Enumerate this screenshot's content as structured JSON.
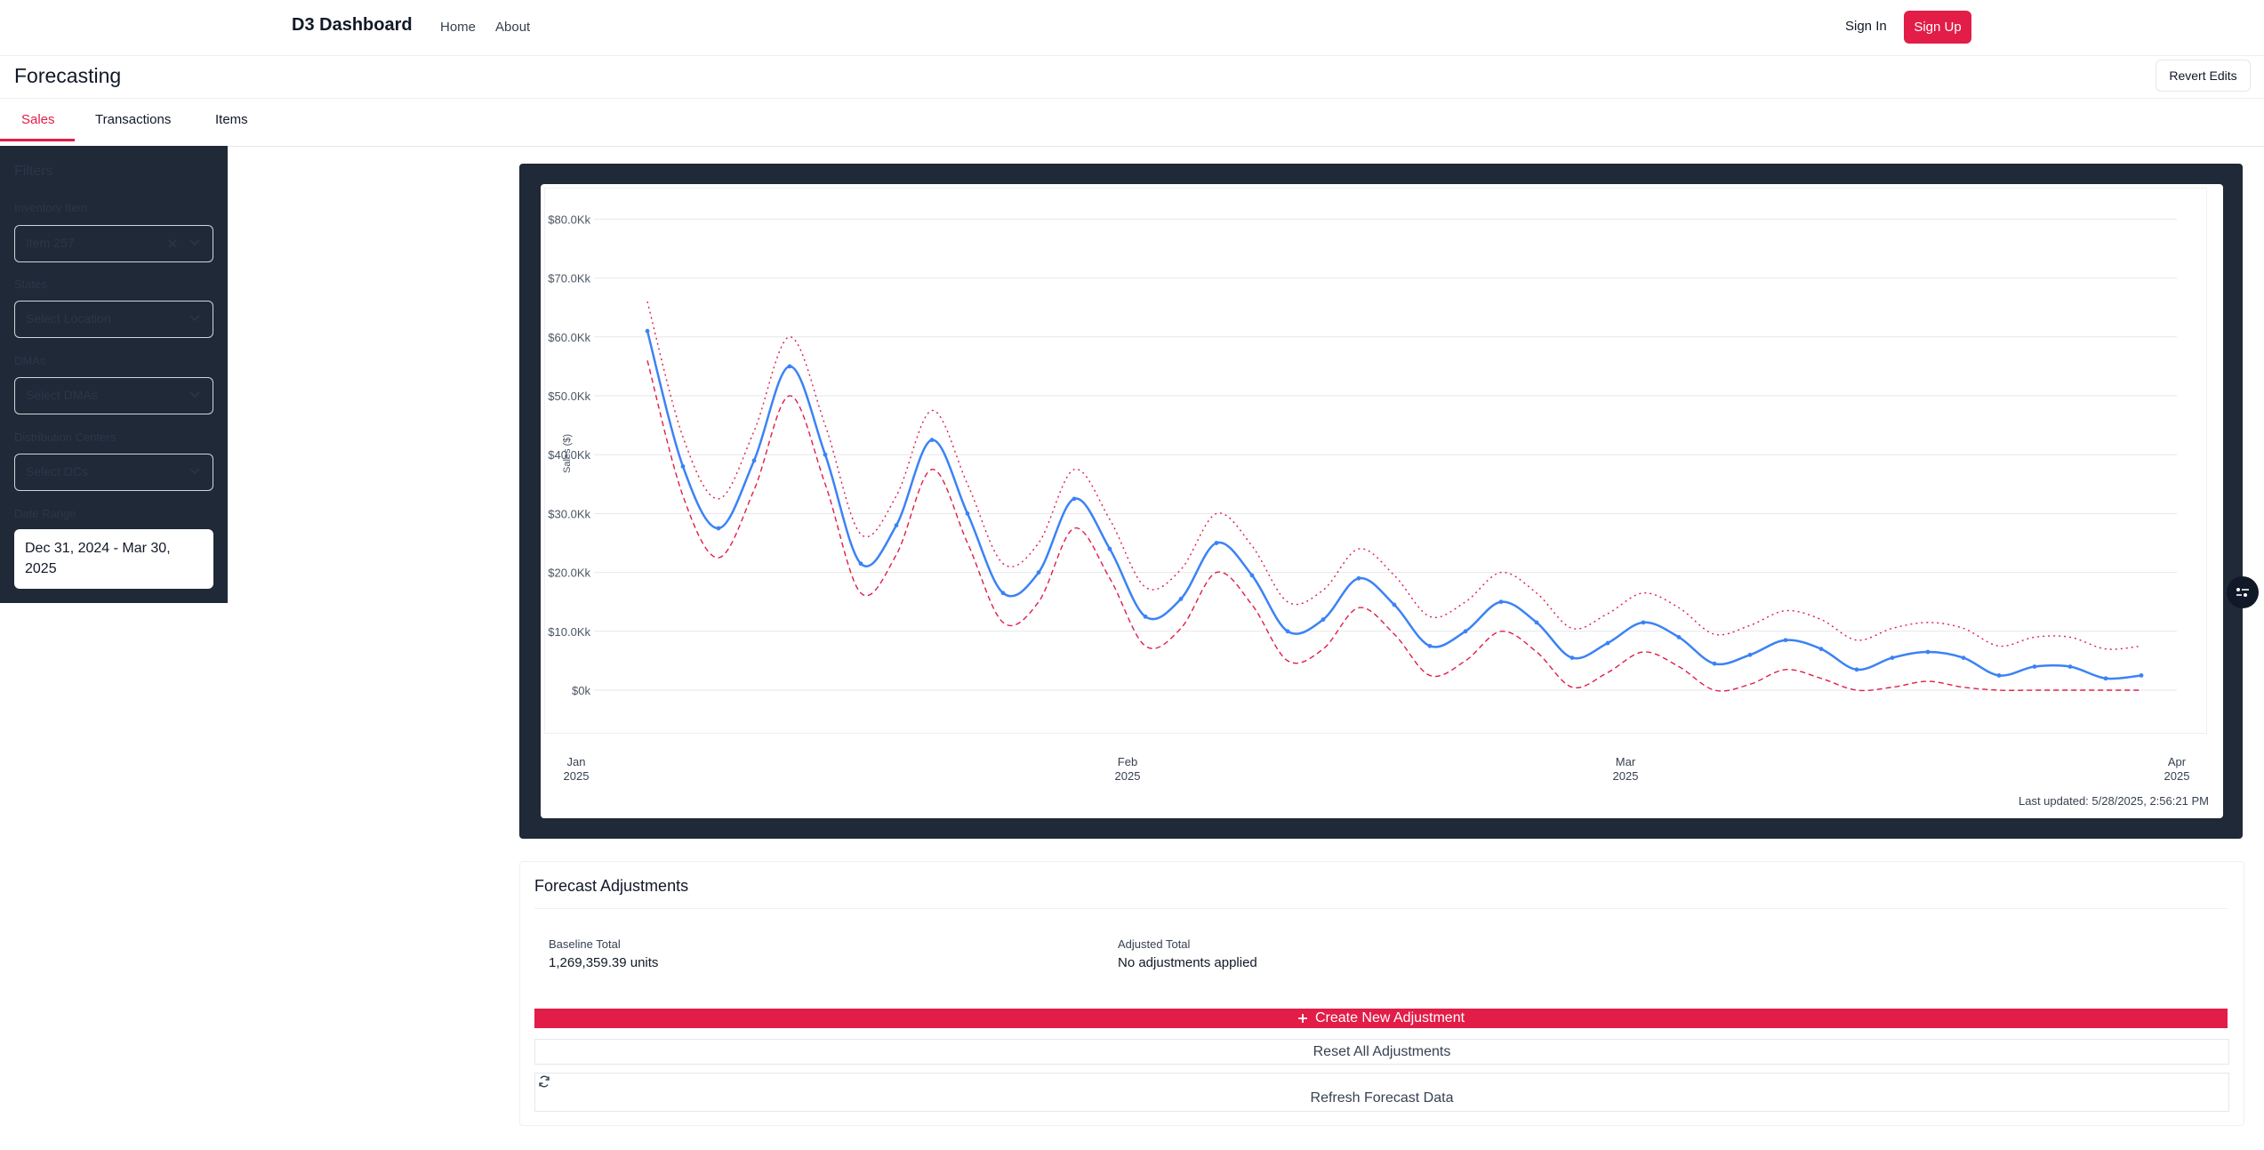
{
  "nav": {
    "brand": "D3 Dashboard",
    "links": [
      "Home",
      "About"
    ],
    "sign_in": "Sign In",
    "sign_up": "Sign Up"
  },
  "page": {
    "title": "Forecasting",
    "revert_label": "Revert Edits"
  },
  "tabs": [
    {
      "label": "Sales",
      "active": true
    },
    {
      "label": "Transactions",
      "active": false
    },
    {
      "label": "Items",
      "active": false
    }
  ],
  "filters": {
    "title": "Filters",
    "inventory_item": {
      "label": "Inventory Item",
      "value": "Item 257"
    },
    "states": {
      "label": "States",
      "placeholder": "Select Location"
    },
    "dmas": {
      "label": "DMAs",
      "placeholder": "Select DMAs"
    },
    "distribution_centers": {
      "label": "Distribution Centers",
      "placeholder": "Select DCs"
    },
    "date_range": {
      "label": "Date Range",
      "value": "Dec 31, 2024 - Mar 30, 2025"
    }
  },
  "chart_data": {
    "type": "line",
    "ylabel": "Sales ($)",
    "y_ticks": [
      "$0k",
      "$10.0Kk",
      "$20.0Kk",
      "$30.0Kk",
      "$40.0Kk",
      "$50.0Kk",
      "$60.0Kk",
      "$70.0Kk",
      "$80.0Kk"
    ],
    "y_tick_values": [
      0,
      10000,
      20000,
      30000,
      40000,
      50000,
      60000,
      70000,
      80000
    ],
    "ylim": [
      0,
      80000
    ],
    "x_ticks": [
      {
        "date": "2025-01-01",
        "month": "Jan",
        "year": "2025"
      },
      {
        "date": "2025-02-01",
        "month": "Feb",
        "year": "2025"
      },
      {
        "date": "2025-03-01",
        "month": "Mar",
        "year": "2025"
      },
      {
        "date": "2025-04-01",
        "month": "Apr",
        "year": "2025"
      }
    ],
    "xlim": [
      "2025-01-01",
      "2025-04-01"
    ],
    "grid": true,
    "series": [
      {
        "role": "forecast",
        "color": "#3b82f6",
        "style": "solid",
        "points": [
          [
            "2025-01-05",
            61000
          ],
          [
            "2025-01-07",
            38000
          ],
          [
            "2025-01-09",
            27500
          ],
          [
            "2025-01-11",
            39000
          ],
          [
            "2025-01-13",
            55000
          ],
          [
            "2025-01-15",
            40000
          ],
          [
            "2025-01-17",
            21500
          ],
          [
            "2025-01-19",
            28000
          ],
          [
            "2025-01-21",
            42500
          ],
          [
            "2025-01-23",
            30000
          ],
          [
            "2025-01-25",
            16500
          ],
          [
            "2025-01-27",
            20000
          ],
          [
            "2025-01-29",
            32500
          ],
          [
            "2025-01-31",
            24000
          ],
          [
            "2025-02-02",
            12500
          ],
          [
            "2025-02-04",
            15500
          ],
          [
            "2025-02-06",
            25000
          ],
          [
            "2025-02-08",
            19500
          ],
          [
            "2025-02-10",
            10000
          ],
          [
            "2025-02-12",
            12000
          ],
          [
            "2025-02-14",
            19000
          ],
          [
            "2025-02-16",
            14500
          ],
          [
            "2025-02-18",
            7500
          ],
          [
            "2025-02-20",
            10000
          ],
          [
            "2025-02-22",
            15000
          ],
          [
            "2025-02-24",
            11500
          ],
          [
            "2025-02-26",
            5500
          ],
          [
            "2025-02-28",
            8000
          ],
          [
            "2025-03-02",
            11500
          ],
          [
            "2025-03-04",
            9000
          ],
          [
            "2025-03-06",
            4500
          ],
          [
            "2025-03-08",
            6000
          ],
          [
            "2025-03-10",
            8500
          ],
          [
            "2025-03-12",
            7000
          ],
          [
            "2025-03-14",
            3500
          ],
          [
            "2025-03-16",
            5500
          ],
          [
            "2025-03-18",
            6500
          ],
          [
            "2025-03-20",
            5500
          ],
          [
            "2025-03-22",
            2500
          ],
          [
            "2025-03-24",
            4000
          ],
          [
            "2025-03-26",
            4000
          ],
          [
            "2025-03-28",
            2000
          ],
          [
            "2025-03-30",
            2500
          ]
        ]
      },
      {
        "role": "upper-bound",
        "color": "#e11d48",
        "style": "dotted",
        "points": [
          [
            "2025-01-05",
            66000
          ],
          [
            "2025-01-07",
            43000
          ],
          [
            "2025-01-09",
            32500
          ],
          [
            "2025-01-11",
            44000
          ],
          [
            "2025-01-13",
            60000
          ],
          [
            "2025-01-15",
            45000
          ],
          [
            "2025-01-17",
            26500
          ],
          [
            "2025-01-19",
            33000
          ],
          [
            "2025-01-21",
            47500
          ],
          [
            "2025-01-23",
            35000
          ],
          [
            "2025-01-25",
            21500
          ],
          [
            "2025-01-27",
            25000
          ],
          [
            "2025-01-29",
            37500
          ],
          [
            "2025-01-31",
            29000
          ],
          [
            "2025-02-02",
            17500
          ],
          [
            "2025-02-04",
            20500
          ],
          [
            "2025-02-06",
            30000
          ],
          [
            "2025-02-08",
            24500
          ],
          [
            "2025-02-10",
            15000
          ],
          [
            "2025-02-12",
            17000
          ],
          [
            "2025-02-14",
            24000
          ],
          [
            "2025-02-16",
            19500
          ],
          [
            "2025-02-18",
            12500
          ],
          [
            "2025-02-20",
            15000
          ],
          [
            "2025-02-22",
            20000
          ],
          [
            "2025-02-24",
            16500
          ],
          [
            "2025-02-26",
            10500
          ],
          [
            "2025-02-28",
            13000
          ],
          [
            "2025-03-02",
            16500
          ],
          [
            "2025-03-04",
            14000
          ],
          [
            "2025-03-06",
            9500
          ],
          [
            "2025-03-08",
            11000
          ],
          [
            "2025-03-10",
            13500
          ],
          [
            "2025-03-12",
            12000
          ],
          [
            "2025-03-14",
            8500
          ],
          [
            "2025-03-16",
            10500
          ],
          [
            "2025-03-18",
            11500
          ],
          [
            "2025-03-20",
            10500
          ],
          [
            "2025-03-22",
            7500
          ],
          [
            "2025-03-24",
            9000
          ],
          [
            "2025-03-26",
            9000
          ],
          [
            "2025-03-28",
            7000
          ],
          [
            "2025-03-30",
            7500
          ]
        ]
      },
      {
        "role": "lower-bound",
        "color": "#e11d48",
        "style": "dashed",
        "points": [
          [
            "2025-01-05",
            56000
          ],
          [
            "2025-01-07",
            33000
          ],
          [
            "2025-01-09",
            22500
          ],
          [
            "2025-01-11",
            34000
          ],
          [
            "2025-01-13",
            50000
          ],
          [
            "2025-01-15",
            35000
          ],
          [
            "2025-01-17",
            16500
          ],
          [
            "2025-01-19",
            23000
          ],
          [
            "2025-01-21",
            37500
          ],
          [
            "2025-01-23",
            25000
          ],
          [
            "2025-01-25",
            11500
          ],
          [
            "2025-01-27",
            15000
          ],
          [
            "2025-01-29",
            27500
          ],
          [
            "2025-01-31",
            19000
          ],
          [
            "2025-02-02",
            7500
          ],
          [
            "2025-02-04",
            10500
          ],
          [
            "2025-02-06",
            20000
          ],
          [
            "2025-02-08",
            14500
          ],
          [
            "2025-02-10",
            5000
          ],
          [
            "2025-02-12",
            7000
          ],
          [
            "2025-02-14",
            14000
          ],
          [
            "2025-02-16",
            9500
          ],
          [
            "2025-02-18",
            2500
          ],
          [
            "2025-02-20",
            5000
          ],
          [
            "2025-02-22",
            10000
          ],
          [
            "2025-02-24",
            6500
          ],
          [
            "2025-02-26",
            500
          ],
          [
            "2025-02-28",
            3000
          ],
          [
            "2025-03-02",
            6500
          ],
          [
            "2025-03-04",
            4000
          ],
          [
            "2025-03-06",
            0
          ],
          [
            "2025-03-08",
            1000
          ],
          [
            "2025-03-10",
            3500
          ],
          [
            "2025-03-12",
            2000
          ],
          [
            "2025-03-14",
            0
          ],
          [
            "2025-03-16",
            500
          ],
          [
            "2025-03-18",
            1500
          ],
          [
            "2025-03-20",
            500
          ],
          [
            "2025-03-22",
            0
          ],
          [
            "2025-03-24",
            0
          ],
          [
            "2025-03-26",
            0
          ],
          [
            "2025-03-28",
            0
          ],
          [
            "2025-03-30",
            0
          ]
        ]
      }
    ],
    "last_updated": "Last updated: 5/28/2025, 2:56:21 PM"
  },
  "adjustments": {
    "title": "Forecast Adjustments",
    "baseline_label": "Baseline Total",
    "baseline_value": "1,269,359.39 units",
    "adjusted_label": "Adjusted Total",
    "adjusted_value": "No adjustments applied",
    "create_label": "Create New Adjustment",
    "reset_label": "Reset All Adjustments",
    "refresh_label": "Refresh Forecast Data"
  },
  "colors": {
    "accent": "#e11d48",
    "panel": "#1f2937",
    "forecast_line": "#3b82f6"
  }
}
